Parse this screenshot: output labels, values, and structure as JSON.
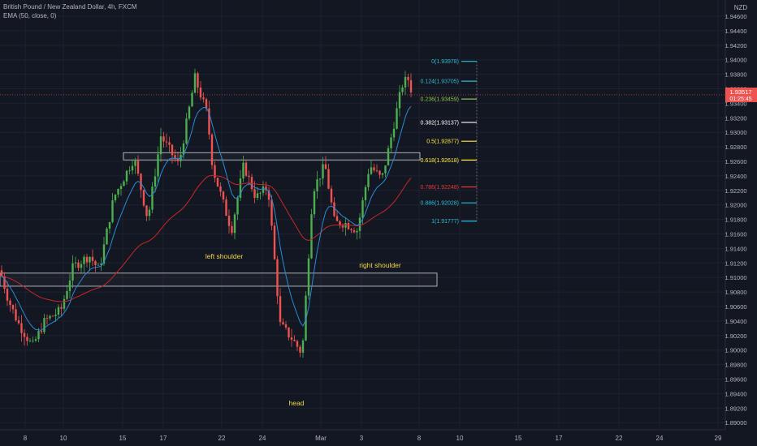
{
  "header": {
    "symbol_title": "British Pound / New Zealand Dollar, 4h, FXCM",
    "indicator_label": "EMA (50, close, 0)"
  },
  "currency_label": "NZD",
  "price_badge": {
    "price": "1.93517",
    "countdown": "01:25:45"
  },
  "colors": {
    "background": "#131722",
    "grid": "#1e2230",
    "bull": "#4caf50",
    "bear": "#ef5350",
    "ema_fast": "#2a8bd6",
    "ema_slow": "#c62828",
    "annotation": "#f5d547"
  },
  "chart_data": {
    "type": "candlestick",
    "x_tick_labels": [
      "8",
      "10",
      "15",
      "17",
      "22",
      "24",
      "Mar",
      "3",
      "8",
      "10",
      "15",
      "17",
      "22",
      "24",
      "29"
    ],
    "y_tick_labels": [
      "1.94600",
      "1.94400",
      "1.94200",
      "1.94000",
      "1.93800",
      "1.93600",
      "1.93400",
      "1.93200",
      "1.93000",
      "1.92800",
      "1.92600",
      "1.92400",
      "1.92200",
      "1.92000",
      "1.91800",
      "1.91600",
      "1.91400",
      "1.91200",
      "1.91000",
      "1.90800",
      "1.90600",
      "1.90400",
      "1.90200",
      "1.90000",
      "1.89800",
      "1.89600",
      "1.89400",
      "1.89200",
      "1.89000"
    ],
    "ylim": [
      1.889,
      1.9475
    ],
    "annotations": [
      "left shoulder",
      "head",
      "right shoulder"
    ],
    "fib_levels": [
      {
        "label": "0(1.93978)",
        "value": 1.93978,
        "color": "#2bbcd4"
      },
      {
        "label": "0.124(1.93705)",
        "value": 1.93705,
        "color": "#2bbcd4"
      },
      {
        "label": "0.236(1.93459)",
        "value": 1.93459,
        "color": "#8bc34a"
      },
      {
        "label": "0.382(1.93137)",
        "value": 1.93137,
        "color": "#ffffff"
      },
      {
        "label": "0.5(1.92877)",
        "value": 1.92877,
        "color": "#ffeb3b"
      },
      {
        "label": "0.618(1.92618)",
        "value": 1.92618,
        "color": "#ffeb3b"
      },
      {
        "label": "0.786(1.92248)",
        "value": 1.92248,
        "color": "#e53935"
      },
      {
        "label": "0.886(1.92028)",
        "value": 1.92028,
        "color": "#2bbcd4"
      },
      {
        "label": "1(1.91777)",
        "value": 1.91777,
        "color": "#2bbcd4"
      }
    ],
    "zones": [
      {
        "low": 1.9262,
        "high": 1.9272
      },
      {
        "low": 1.9088,
        "high": 1.9106
      }
    ]
  }
}
